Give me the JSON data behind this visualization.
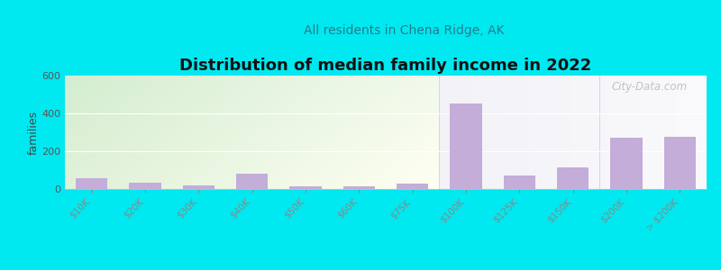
{
  "title": "Distribution of median family income in 2022",
  "subtitle": "All residents in Chena Ridge, AK",
  "ylabel": "families",
  "categories": [
    "$10K",
    "$20K",
    "$30K",
    "$40K",
    "$50K",
    "$60K",
    "$75K",
    "$100K",
    "$125K",
    "$150K",
    "$200K",
    "> $200K"
  ],
  "values": [
    55,
    35,
    20,
    80,
    15,
    15,
    30,
    450,
    70,
    115,
    270,
    275
  ],
  "green_indices": [
    0,
    1,
    2,
    3,
    4,
    5,
    6
  ],
  "purple_indices": [
    7,
    8,
    9,
    10,
    11
  ],
  "bar_color": "#c4add8",
  "background_outer": "#00e8f0",
  "bg_green_top": "#d0e8c0",
  "bg_green_bottom": "#e8f4e0",
  "bg_right_top": "#f0ecf8",
  "bg_right_bottom": "#f8f6fc",
  "ylim": [
    0,
    600
  ],
  "yticks": [
    0,
    200,
    400,
    600
  ],
  "title_fontsize": 13,
  "subtitle_fontsize": 10,
  "watermark": "City-Data.com"
}
